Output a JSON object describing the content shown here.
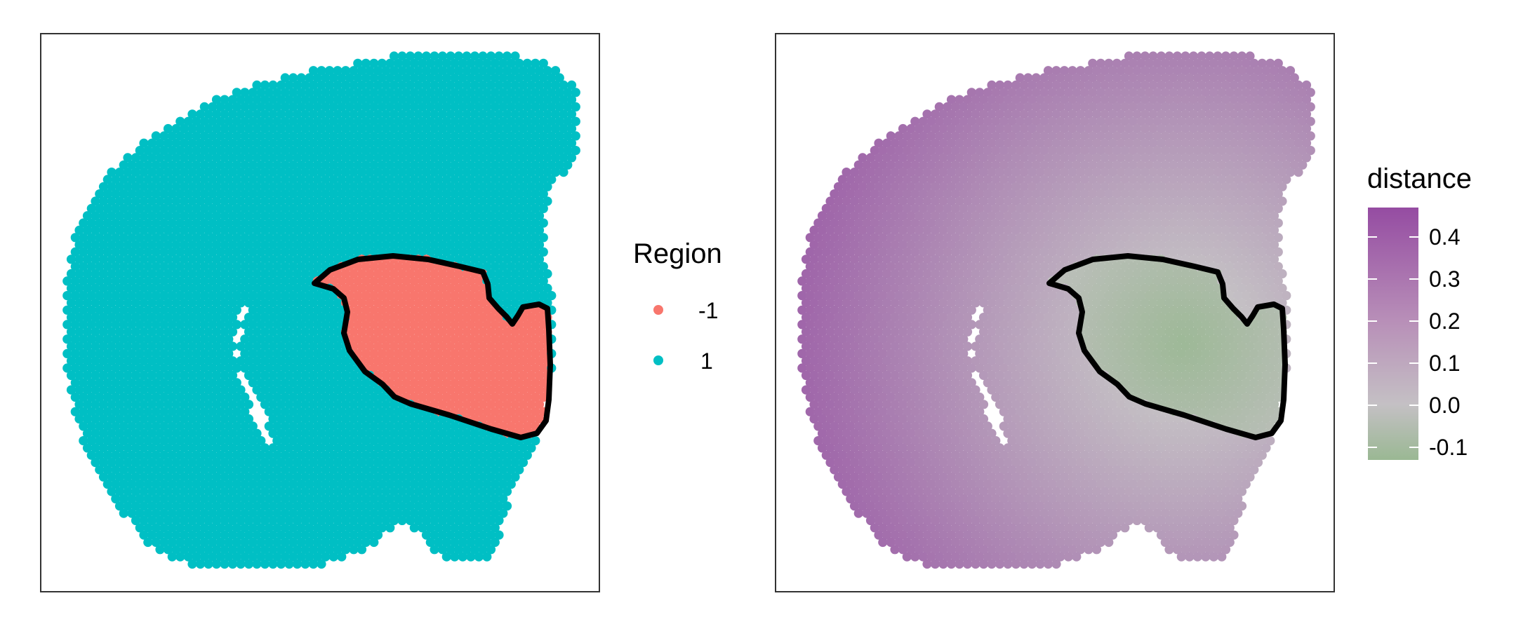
{
  "chart_data": [
    {
      "type": "scatter",
      "panel": "left",
      "description_scope": "spatial spot map, categorical color by region, outlined region boundary",
      "legend": {
        "title": "Region",
        "entries": [
          {
            "label": "-1",
            "color": "#F8766D"
          },
          {
            "label": "1",
            "color": "#00BFC4"
          }
        ]
      },
      "axes_visible": false,
      "grid": false,
      "boundary_color": "#000000"
    },
    {
      "type": "scatter",
      "panel": "right",
      "description_scope": "spatial spot map, continuous color by distance, same outlined boundary",
      "legend": {
        "title": "distance",
        "ticks": [
          "0.4",
          "0.3",
          "0.2",
          "0.1",
          "0.0",
          "-0.1"
        ],
        "tick_values": [
          0.4,
          0.3,
          0.2,
          0.1,
          0.0,
          -0.1
        ],
        "range": [
          -0.13,
          0.47
        ],
        "low_color": "#9AB893",
        "mid_color": "#C4C0C4",
        "high_color": "#954CA2",
        "mid_value": 0.0
      },
      "axes_visible": false,
      "grid": false,
      "boundary_color": "#000000"
    }
  ]
}
